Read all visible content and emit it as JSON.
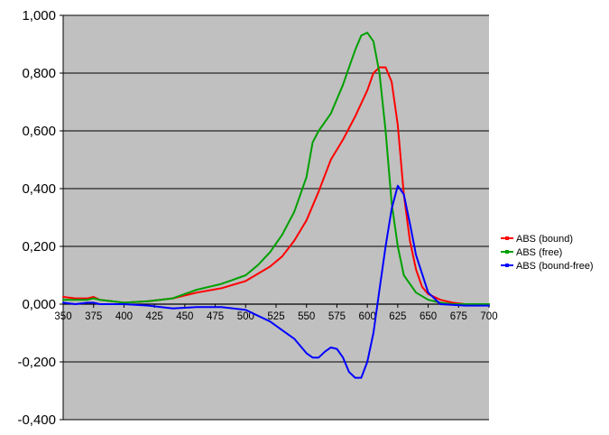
{
  "chart_data": {
    "type": "line",
    "title": "",
    "xlabel": "",
    "ylabel": "",
    "xlim": [
      350,
      700
    ],
    "ylim": [
      -0.4,
      1.0
    ],
    "grid": "horizontal",
    "background": "#c0c0c0",
    "legend_position": "right",
    "x_ticks": [
      350,
      375,
      400,
      425,
      450,
      475,
      500,
      525,
      550,
      575,
      600,
      625,
      650,
      675,
      700
    ],
    "x_tick_labels": [
      "350",
      "375",
      "400",
      "425",
      "450",
      "475",
      "500",
      "525",
      "550",
      "575",
      "600",
      "625",
      "650",
      "675",
      "700"
    ],
    "y_ticks": [
      -0.4,
      -0.2,
      0.0,
      0.2,
      0.4,
      0.6,
      0.8,
      1.0
    ],
    "y_tick_labels": [
      "-0,400",
      "-0,200",
      "0,000",
      "0,200",
      "0,400",
      "0,600",
      "0,800",
      "1,000"
    ],
    "series": [
      {
        "name": "ABS (bound)",
        "color": "#ff0000",
        "x": [
          350,
          360,
          370,
          375,
          380,
          390,
          400,
          420,
          440,
          460,
          480,
          500,
          520,
          530,
          540,
          550,
          560,
          570,
          580,
          590,
          600,
          605,
          610,
          615,
          620,
          625,
          630,
          635,
          640,
          645,
          650,
          660,
          670,
          680,
          700
        ],
        "y": [
          0.025,
          0.02,
          0.02,
          0.025,
          0.015,
          0.01,
          0.005,
          0.01,
          0.02,
          0.04,
          0.055,
          0.08,
          0.13,
          0.165,
          0.22,
          0.29,
          0.39,
          0.5,
          0.57,
          0.65,
          0.74,
          0.8,
          0.82,
          0.82,
          0.77,
          0.62,
          0.38,
          0.22,
          0.12,
          0.06,
          0.035,
          0.015,
          0.005,
          0.0,
          0.0
        ]
      },
      {
        "name": "ABS (free)",
        "color": "#00a000",
        "x": [
          350,
          360,
          370,
          375,
          380,
          390,
          400,
          420,
          440,
          460,
          480,
          500,
          510,
          520,
          530,
          540,
          550,
          555,
          560,
          570,
          580,
          585,
          590,
          595,
          600,
          605,
          610,
          615,
          620,
          625,
          630,
          640,
          650,
          660,
          670,
          700
        ],
        "y": [
          0.015,
          0.015,
          0.015,
          0.02,
          0.015,
          0.01,
          0.005,
          0.01,
          0.02,
          0.05,
          0.07,
          0.1,
          0.135,
          0.18,
          0.24,
          0.32,
          0.44,
          0.56,
          0.6,
          0.66,
          0.76,
          0.82,
          0.88,
          0.93,
          0.94,
          0.91,
          0.8,
          0.6,
          0.35,
          0.2,
          0.1,
          0.04,
          0.015,
          0.005,
          0.0,
          0.0
        ]
      },
      {
        "name": "ABS (bound-free)",
        "color": "#0000ff",
        "x": [
          350,
          360,
          370,
          375,
          380,
          400,
          420,
          440,
          460,
          480,
          500,
          510,
          520,
          530,
          540,
          550,
          555,
          560,
          565,
          570,
          575,
          580,
          585,
          590,
          595,
          600,
          605,
          610,
          615,
          620,
          625,
          630,
          635,
          640,
          650,
          660,
          680,
          700
        ],
        "y": [
          0.005,
          0.0,
          0.005,
          0.005,
          0.0,
          0.0,
          -0.005,
          -0.015,
          -0.01,
          -0.01,
          -0.02,
          -0.04,
          -0.06,
          -0.09,
          -0.12,
          -0.17,
          -0.185,
          -0.185,
          -0.165,
          -0.15,
          -0.155,
          -0.185,
          -0.235,
          -0.255,
          -0.255,
          -0.2,
          -0.1,
          0.05,
          0.2,
          0.33,
          0.41,
          0.38,
          0.28,
          0.17,
          0.04,
          0.0,
          -0.005,
          -0.005
        ]
      }
    ]
  }
}
